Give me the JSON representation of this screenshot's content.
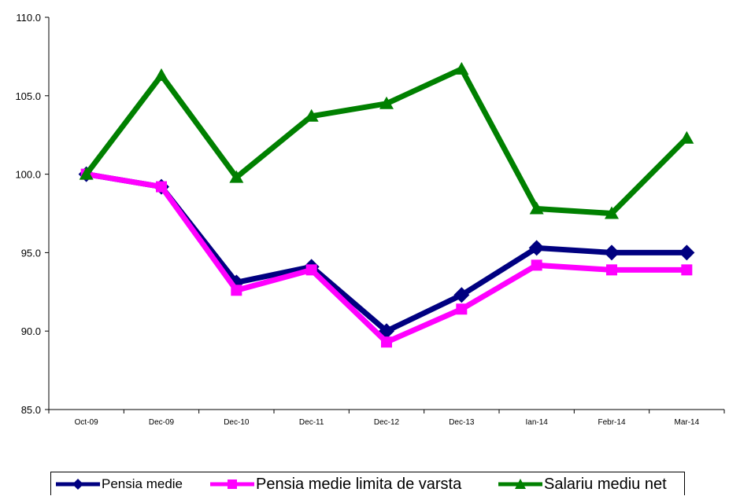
{
  "chart_data": {
    "type": "line",
    "categories": [
      "Oct-09",
      "Dec-09",
      "Dec-10",
      "Dec-11",
      "Dec-12",
      "Dec-13",
      "Ian-14",
      "Febr-14",
      "Mar-14"
    ],
    "series": [
      {
        "name": "Pensia medie",
        "color": "#000080",
        "marker": "diamond",
        "values": [
          100.0,
          99.2,
          93.1,
          94.1,
          90.0,
          92.3,
          95.3,
          95.0,
          95.0
        ]
      },
      {
        "name": "Pensia medie limita de varsta",
        "color": "#FF00FF",
        "marker": "square",
        "values": [
          100.0,
          99.2,
          92.6,
          93.9,
          89.3,
          91.4,
          94.2,
          93.9,
          93.9
        ]
      },
      {
        "name": "Salariu mediu net",
        "color": "#008000",
        "marker": "triangle",
        "values": [
          100.0,
          106.3,
          99.8,
          103.7,
          104.5,
          106.7,
          97.8,
          97.5,
          102.3
        ]
      }
    ],
    "yticks": [
      "85.0",
      "90.0",
      "95.0",
      "100.0",
      "105.0",
      "110.0"
    ],
    "ylim": [
      85,
      110
    ],
    "grid": false,
    "legend_position": "bottom"
  }
}
